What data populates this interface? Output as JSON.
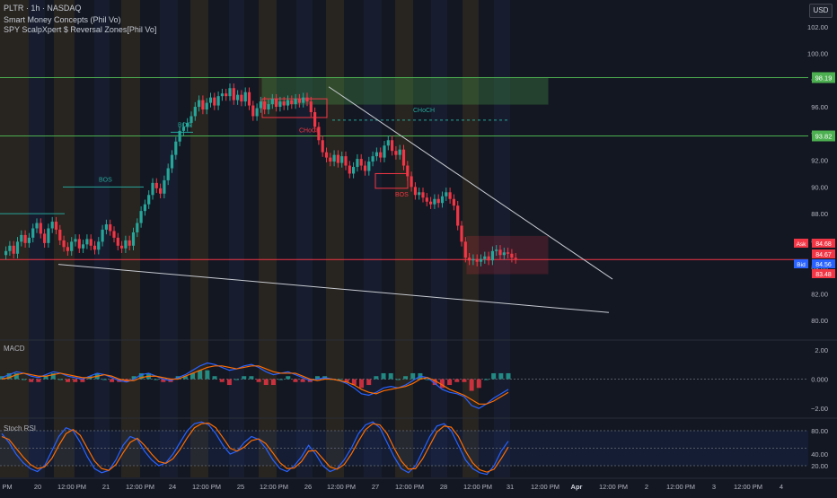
{
  "header": {
    "symbol_line": "PLTR · 1h · NASDAQ",
    "indicator_1": "Smart Money Concepts (Phil Vo)",
    "indicator_2": "SPY ScalpXpert $ Reversal Zones[Phil Vo]",
    "currency": "USD"
  },
  "panes": {
    "macd_title": "MACD",
    "rsi_title": "Stoch RSI"
  },
  "chart_data": [
    {
      "type": "candlestick",
      "title": "PLTR · 1h · NASDAQ",
      "ylim": [
        78.6,
        104
      ],
      "y_ticks": [
        80.0,
        82.0,
        84.0,
        86.0,
        88.0,
        90.0,
        92.0,
        94.0,
        96.0,
        98.0,
        100.0,
        102.0
      ],
      "y_tick_labels": [
        "80.00",
        "82.00",
        "84.00",
        "86.00",
        "88.00",
        "90.00",
        "92.00",
        "94.00",
        "96.00",
        "98.00",
        "100.00",
        "102.00"
      ],
      "x_tick_labels": [
        "PM",
        "20",
        "12:00 PM",
        "21",
        "12:00 PM",
        "24",
        "12:00 PM",
        "25",
        "12:00 PM",
        "26",
        "12:00 PM",
        "27",
        "12:00 PM",
        "28",
        "12:00 PM",
        "31",
        "12:00 PM",
        "Apr",
        "12:00 PM",
        "2",
        "12:00 PM",
        "3",
        "12:00 PM",
        "4"
      ],
      "grid": false,
      "candles_close": [
        85.2,
        85.6,
        85.0,
        85.9,
        86.4,
        85.8,
        86.2,
        86.9,
        87.3,
        86.5,
        85.8,
        86.9,
        87.4,
        86.8,
        86.0,
        85.5,
        85.2,
        85.9,
        86.1,
        85.4,
        85.7,
        86.1,
        85.6,
        85.3,
        85.9,
        86.8,
        87.2,
        86.7,
        86.2,
        85.6,
        85.4,
        86.0,
        85.6,
        86.6,
        87.3,
        88.2,
        88.7,
        89.4,
        90.3,
        89.9,
        89.5,
        90.5,
        91.4,
        92.4,
        93.4,
        94.2,
        94.5,
        94.8,
        95.3,
        96.0,
        96.5,
        95.8,
        96.3,
        96.7,
        96.1,
        96.8,
        97.0,
        96.8,
        97.4,
        96.5,
        96.9,
        96.4,
        97.1,
        96.1,
        95.3,
        95.9,
        96.4,
        95.8,
        96.2,
        96.6,
        96.0,
        96.4,
        96.1,
        96.5,
        96.2,
        96.6,
        96.3,
        96.7,
        96.4,
        95.6,
        94.5,
        93.5,
        92.6,
        92.2,
        91.9,
        92.4,
        91.8,
        92.3,
        91.6,
        91.0,
        91.5,
        92.1,
        91.6,
        91.2,
        91.9,
        92.3,
        92.6,
        92.2,
        93.1,
        93.5,
        92.7,
        92.4,
        92.8,
        91.6,
        90.8,
        90.0,
        89.4,
        89.6,
        89.2,
        88.9,
        88.7,
        89.1,
        88.8,
        89.3,
        89.6,
        89.1,
        88.6,
        87.1,
        85.9,
        84.7,
        84.5,
        84.6,
        84.4,
        84.6,
        84.8,
        84.5,
        85.2,
        85.3,
        84.9,
        85.1,
        85.0,
        84.7,
        84.6
      ],
      "reference_lines": [
        {
          "label": "98.19",
          "value": 98.19,
          "color": "#4caf50"
        },
        {
          "label": "93.82",
          "value": 93.82,
          "color": "#4caf50"
        },
        {
          "label": "84.56",
          "value": 84.56,
          "color": "#f23645"
        }
      ],
      "price_tags": [
        {
          "label": "Ask",
          "value": "84.68",
          "color": "#f23645"
        },
        {
          "label": "",
          "value": "84.67",
          "color": "#f23645"
        },
        {
          "label": "Bid",
          "value": "84.56",
          "color": "#2962ff"
        },
        {
          "label": "",
          "value": "83.48",
          "color": "#f23645"
        }
      ],
      "annotations": [
        {
          "text": "BOS",
          "color": "#26a69a"
        },
        {
          "text": "BOS",
          "color": "#26a69a"
        },
        {
          "text": "CHoCH",
          "color": "#26a69a"
        },
        {
          "text": "CHoCH",
          "color": "#f23645"
        },
        {
          "text": "BOS",
          "color": "#f23645"
        }
      ]
    },
    {
      "type": "macd",
      "title": "MACD",
      "ylim": [
        -2.6,
        2.6
      ],
      "y_tick_labels": [
        "2.00",
        "0.000",
        "−2.00"
      ],
      "y_ticks": [
        2.0,
        0.0,
        -2.0
      ],
      "macd": [
        0.1,
        0.3,
        0.5,
        0.4,
        0.2,
        0.1,
        0.3,
        0.5,
        0.4,
        0.2,
        0.1,
        0.0,
        0.2,
        0.4,
        0.3,
        0.1,
        -0.1,
        -0.2,
        0.0,
        0.3,
        0.4,
        0.2,
        0.0,
        -0.1,
        0.1,
        0.3,
        0.6,
        0.9,
        1.1,
        1.0,
        0.8,
        0.6,
        0.7,
        0.9,
        1.0,
        0.8,
        0.5,
        0.3,
        0.4,
        0.5,
        0.3,
        0.1,
        -0.1,
        0.0,
        0.1,
        0.0,
        -0.1,
        -0.3,
        -0.6,
        -1.0,
        -1.1,
        -0.9,
        -0.6,
        -0.5,
        -0.6,
        -0.4,
        -0.1,
        0.2,
        0.1,
        -0.3,
        -0.7,
        -0.9,
        -1.0,
        -1.2,
        -1.8,
        -2.0,
        -1.7,
        -1.3,
        -1.0,
        -0.7
      ],
      "signal": [
        0.0,
        0.1,
        0.3,
        0.4,
        0.3,
        0.2,
        0.2,
        0.3,
        0.4,
        0.3,
        0.2,
        0.1,
        0.1,
        0.2,
        0.3,
        0.2,
        0.0,
        -0.1,
        -0.1,
        0.1,
        0.2,
        0.2,
        0.1,
        0.0,
        0.0,
        0.2,
        0.4,
        0.6,
        0.8,
        0.9,
        0.9,
        0.8,
        0.7,
        0.8,
        0.9,
        0.9,
        0.7,
        0.5,
        0.4,
        0.4,
        0.4,
        0.2,
        0.0,
        -0.1,
        0.0,
        0.0,
        -0.1,
        -0.2,
        -0.4,
        -0.7,
        -0.9,
        -1.0,
        -0.8,
        -0.7,
        -0.6,
        -0.5,
        -0.3,
        0.0,
        0.1,
        -0.1,
        -0.4,
        -0.7,
        -0.9,
        -1.1,
        -1.4,
        -1.7,
        -1.7,
        -1.5,
        -1.2,
        -0.9
      ]
    },
    {
      "type": "stoch_rsi",
      "title": "Stoch RSI",
      "ylim": [
        0,
        100
      ],
      "y_tick_labels": [
        "80.00",
        "40.00",
        "20.00"
      ],
      "y_ticks": [
        80,
        40,
        20
      ],
      "k": [
        75,
        60,
        40,
        25,
        15,
        10,
        20,
        45,
        70,
        85,
        80,
        60,
        35,
        15,
        8,
        12,
        30,
        55,
        70,
        65,
        45,
        30,
        20,
        25,
        40,
        60,
        80,
        92,
        95,
        90,
        75,
        55,
        40,
        45,
        60,
        70,
        65,
        50,
        30,
        15,
        10,
        20,
        35,
        55,
        40,
        20,
        10,
        15,
        30,
        50,
        75,
        90,
        95,
        85,
        60,
        35,
        15,
        8,
        20,
        45,
        70,
        88,
        92,
        80,
        55,
        30,
        15,
        8,
        5,
        20,
        45,
        62
      ],
      "d": [
        70,
        65,
        50,
        35,
        22,
        15,
        18,
        32,
        55,
        75,
        82,
        72,
        50,
        28,
        15,
        12,
        22,
        42,
        60,
        67,
        55,
        40,
        27,
        24,
        32,
        48,
        68,
        85,
        92,
        93,
        85,
        68,
        50,
        45,
        52,
        63,
        66,
        58,
        42,
        25,
        15,
        16,
        27,
        45,
        46,
        32,
        18,
        14,
        22,
        40,
        62,
        82,
        92,
        90,
        75,
        50,
        28,
        14,
        15,
        32,
        55,
        78,
        88,
        86,
        70,
        45,
        25,
        13,
        9,
        14,
        32,
        52
      ]
    }
  ]
}
